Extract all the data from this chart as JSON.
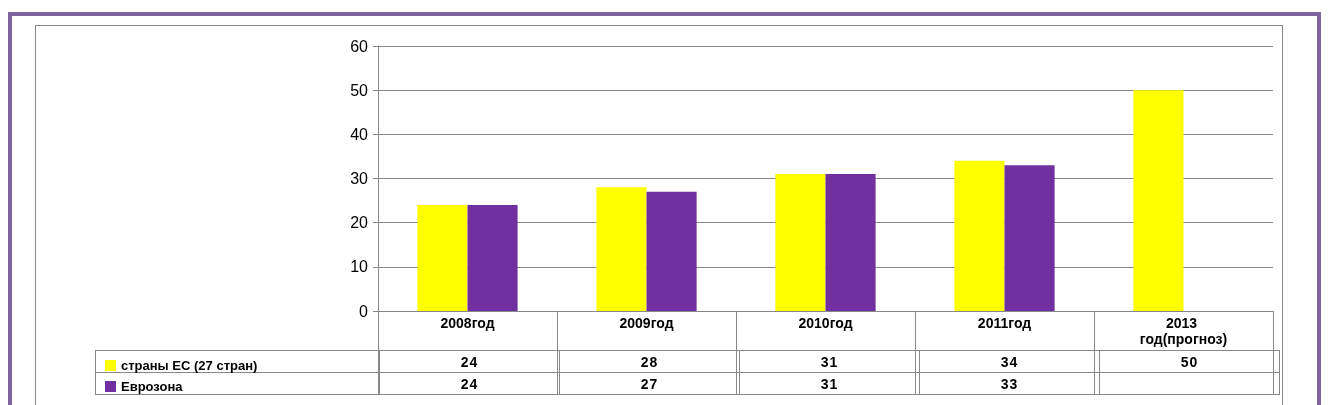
{
  "chart_data": {
    "type": "bar",
    "categories": [
      "2008год",
      "2009год",
      "2010год",
      "2011год",
      "2013 год(прогноз)"
    ],
    "series": [
      {
        "name": "страны ЕС (27 стран)",
        "color": "#ffff00",
        "values": [
          24,
          28,
          31,
          34,
          50
        ]
      },
      {
        "name": "Еврозона",
        "color": "#7030a0",
        "values": [
          24,
          27,
          31,
          33,
          null
        ]
      }
    ],
    "ylim": [
      0,
      60
    ],
    "yticks": [
      0,
      10,
      20,
      30,
      40,
      50,
      60
    ],
    "grid": "y",
    "legend": "bottom left",
    "data_labels": true
  }
}
